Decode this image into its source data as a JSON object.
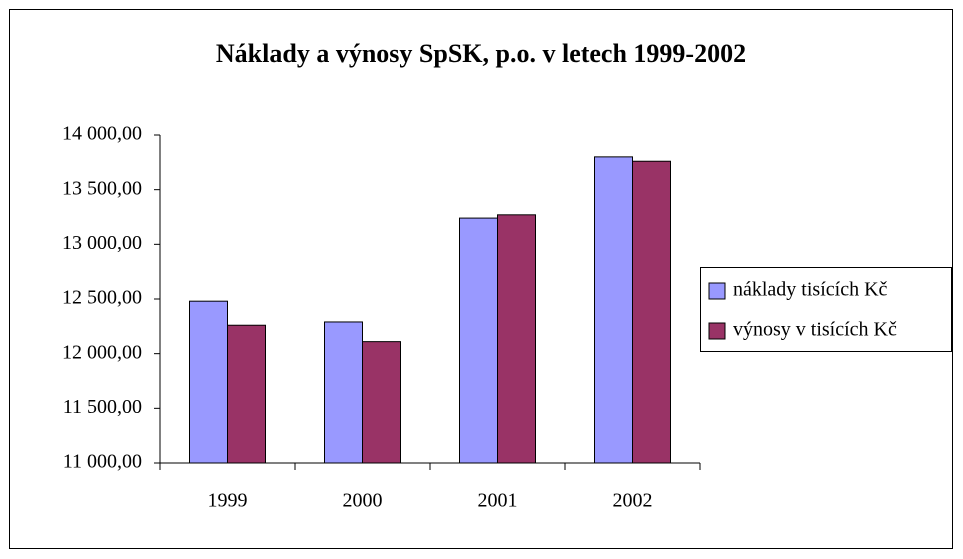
{
  "chart_data": {
    "type": "bar",
    "title": "Náklady a výnosy SpSK, p.o. v letech 1999-2002",
    "categories": [
      "1999",
      "2000",
      "2001",
      "2002"
    ],
    "series": [
      {
        "name": "náklady tisících Kč",
        "color": "#9999ff",
        "values": [
          12480,
          12290,
          13240,
          13800
        ]
      },
      {
        "name": "výnosy v tisících Kč",
        "color": "#993366",
        "values": [
          12260,
          12110,
          13270,
          13760
        ]
      }
    ],
    "ylim": [
      11000,
      14000
    ],
    "yticks": [
      {
        "value": 11000,
        "label": "11 000,00"
      },
      {
        "value": 11500,
        "label": "11 500,00"
      },
      {
        "value": 12000,
        "label": "12 000,00"
      },
      {
        "value": 12500,
        "label": "12 500,00"
      },
      {
        "value": 13000,
        "label": "13 000,00"
      },
      {
        "value": 13500,
        "label": "13 500,00"
      },
      {
        "value": 14000,
        "label": "14 000,00"
      }
    ],
    "grid": false,
    "legend": "right"
  }
}
